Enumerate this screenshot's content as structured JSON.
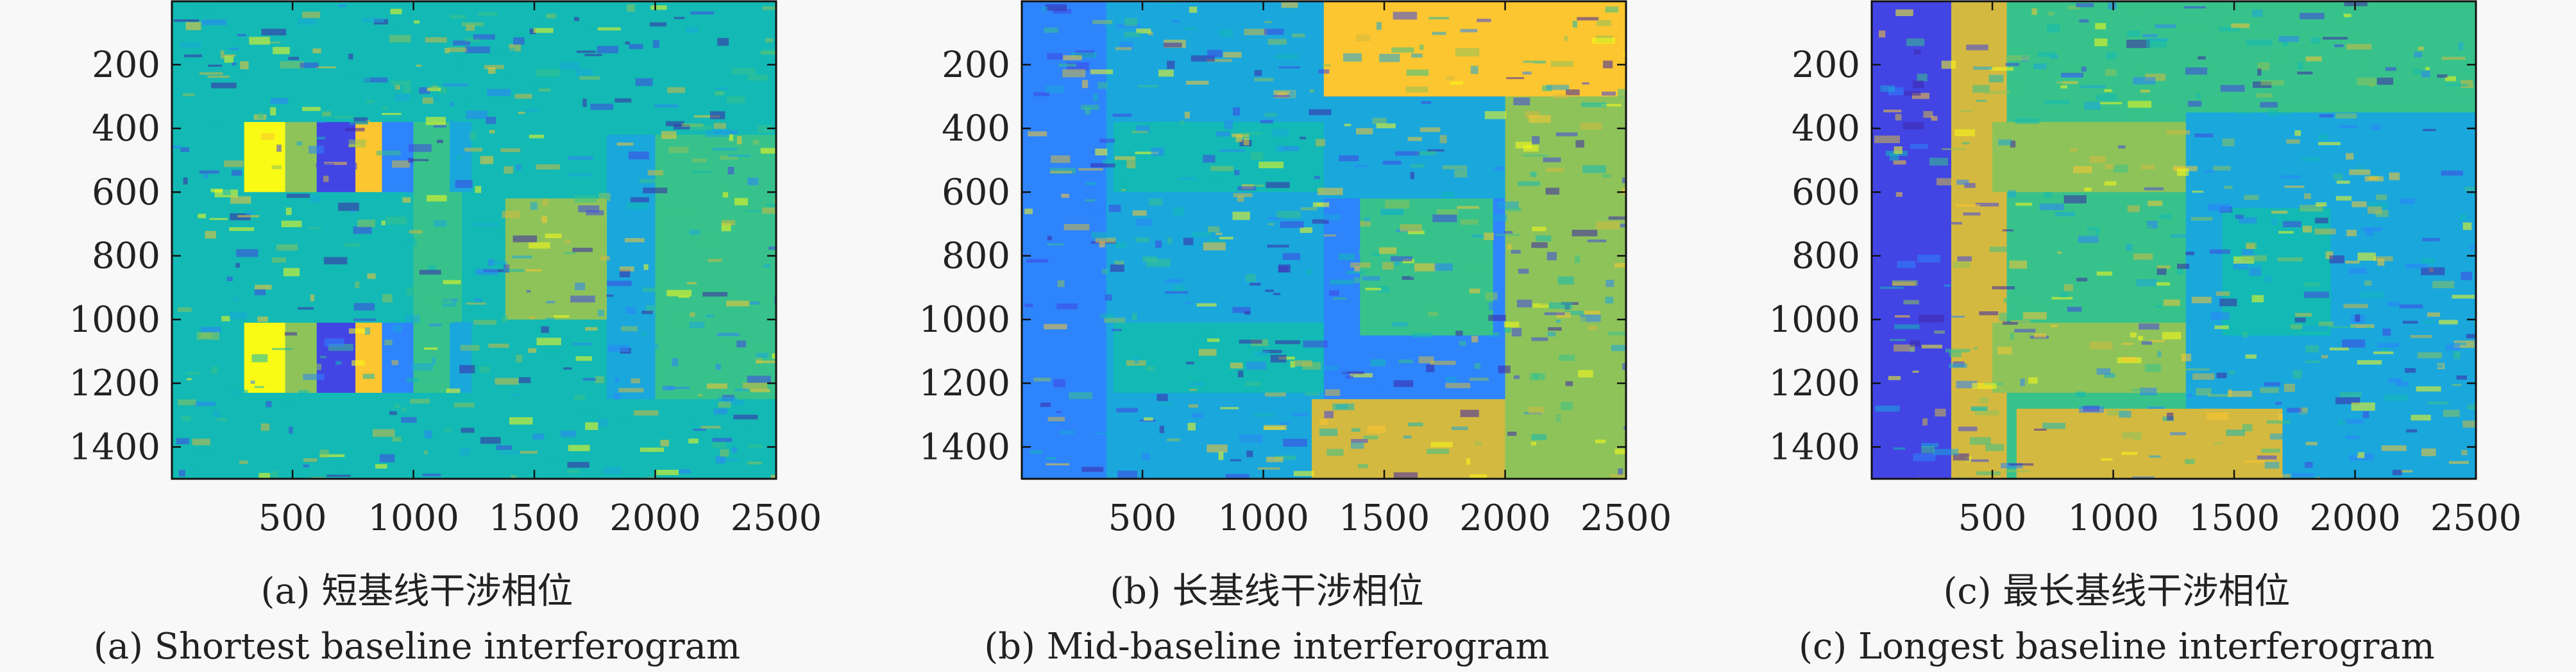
{
  "colormap": [
    "#3e26a8",
    "#4245e4",
    "#2e84fb",
    "#1aa7dc",
    "#13b9b4",
    "#38c28b",
    "#8ec35a",
    "#d4b940",
    "#fbc630",
    "#f9fb15"
  ],
  "chart_data": [
    {
      "type": "heatmap",
      "panel": "a",
      "caption_zh": "(a) 短基线干涉相位",
      "caption_en": "(a) Shortest baseline interferogram",
      "xlim": [
        1,
        2500
      ],
      "ylim": [
        1,
        1500
      ],
      "y_reversed": true,
      "xticks": [
        500,
        1000,
        1500,
        2000,
        2500
      ],
      "yticks": [
        200,
        400,
        600,
        800,
        1000,
        1200,
        1400
      ],
      "xlabel": "",
      "ylabel": "",
      "base_level": 0.42,
      "patches": [
        {
          "x": [
            300,
            470
          ],
          "y": [
            380,
            600
          ],
          "level": 0.97
        },
        {
          "x": [
            470,
            600
          ],
          "y": [
            380,
            600
          ],
          "level": 0.72
        },
        {
          "x": [
            600,
            760
          ],
          "y": [
            380,
            600
          ],
          "level": 0.12
        },
        {
          "x": [
            760,
            870
          ],
          "y": [
            380,
            600
          ],
          "level": 0.9
        },
        {
          "x": [
            870,
            1000
          ],
          "y": [
            380,
            600
          ],
          "level": 0.22
        },
        {
          "x": [
            1000,
            1150
          ],
          "y": [
            380,
            600
          ],
          "level": 0.6
        },
        {
          "x": [
            1150,
            1240
          ],
          "y": [
            380,
            600
          ],
          "level": 0.3
        },
        {
          "x": [
            300,
            470
          ],
          "y": [
            1010,
            1230
          ],
          "level": 0.97
        },
        {
          "x": [
            470,
            600
          ],
          "y": [
            1010,
            1230
          ],
          "level": 0.72
        },
        {
          "x": [
            600,
            760
          ],
          "y": [
            1010,
            1230
          ],
          "level": 0.12
        },
        {
          "x": [
            760,
            870
          ],
          "y": [
            1010,
            1230
          ],
          "level": 0.9
        },
        {
          "x": [
            870,
            1000
          ],
          "y": [
            1010,
            1230
          ],
          "level": 0.22
        },
        {
          "x": [
            1000,
            1150
          ],
          "y": [
            1010,
            1230
          ],
          "level": 0.6
        },
        {
          "x": [
            1150,
            1240
          ],
          "y": [
            1010,
            1230
          ],
          "level": 0.3
        },
        {
          "x": [
            1000,
            1200
          ],
          "y": [
            600,
            1010
          ],
          "level": 0.58
        },
        {
          "x": [
            1380,
            1800
          ],
          "y": [
            620,
            1000
          ],
          "level": 0.62
        },
        {
          "x": [
            1800,
            2000
          ],
          "y": [
            420,
            1250
          ],
          "level": 0.36
        },
        {
          "x": [
            2000,
            2500
          ],
          "y": [
            420,
            1250
          ],
          "level": 0.55
        }
      ]
    },
    {
      "type": "heatmap",
      "panel": "b",
      "caption_zh": "(b) 长基线干涉相位",
      "caption_en": "(b) Mid-baseline interferogram",
      "xlim": [
        1,
        2500
      ],
      "ylim": [
        1,
        1500
      ],
      "y_reversed": true,
      "xticks": [
        500,
        1000,
        1500,
        2000,
        2500
      ],
      "yticks": [
        200,
        400,
        600,
        800,
        1000,
        1200,
        1400
      ],
      "xlabel": "",
      "ylabel": "",
      "base_level": 0.2,
      "patches": [
        {
          "x": [
            1,
            350
          ],
          "y": [
            1,
            1500
          ],
          "level": 0.24
        },
        {
          "x": [
            350,
            1250
          ],
          "y": [
            1,
            1500
          ],
          "level": 0.3
        },
        {
          "x": [
            1250,
            2500
          ],
          "y": [
            1,
            300
          ],
          "level": 0.88
        },
        {
          "x": [
            2000,
            2500
          ],
          "y": [
            300,
            1500
          ],
          "level": 0.72
        },
        {
          "x": [
            1400,
            1950
          ],
          "y": [
            620,
            1050
          ],
          "level": 0.6
        },
        {
          "x": [
            1200,
            2000
          ],
          "y": [
            1250,
            1500
          ],
          "level": 0.82
        },
        {
          "x": [
            380,
            1250
          ],
          "y": [
            380,
            600
          ],
          "level": 0.45
        },
        {
          "x": [
            380,
            1250
          ],
          "y": [
            1010,
            1230
          ],
          "level": 0.45
        },
        {
          "x": [
            1250,
            2000
          ],
          "y": [
            300,
            620
          ],
          "level": 0.38
        }
      ]
    },
    {
      "type": "heatmap",
      "panel": "c",
      "caption_zh": "(c) 最长基线干涉相位",
      "caption_en": "(c) Longest baseline interferogram",
      "xlim": [
        1,
        2500
      ],
      "ylim": [
        1,
        1500
      ],
      "y_reversed": true,
      "xticks": [
        500,
        1000,
        1500,
        2000,
        2500
      ],
      "yticks": [
        200,
        400,
        600,
        800,
        1000,
        1200,
        1400
      ],
      "xlabel": "",
      "ylabel": "",
      "base_level": 0.32,
      "patches": [
        {
          "x": [
            1,
            330
          ],
          "y": [
            1,
            1500
          ],
          "level": 0.08
        },
        {
          "x": [
            330,
            560
          ],
          "y": [
            1,
            1500
          ],
          "level": 0.78
        },
        {
          "x": [
            560,
            1300
          ],
          "y": [
            1,
            1500
          ],
          "level": 0.55
        },
        {
          "x": [
            1300,
            2500
          ],
          "y": [
            1,
            350
          ],
          "level": 0.58
        },
        {
          "x": [
            1450,
            1900
          ],
          "y": [
            650,
            1050
          ],
          "level": 0.4
        },
        {
          "x": [
            1900,
            2500
          ],
          "y": [
            350,
            1500
          ],
          "level": 0.38
        },
        {
          "x": [
            500,
            1300
          ],
          "y": [
            380,
            600
          ],
          "level": 0.7
        },
        {
          "x": [
            500,
            1300
          ],
          "y": [
            1010,
            1230
          ],
          "level": 0.7
        },
        {
          "x": [
            600,
            1700
          ],
          "y": [
            1280,
            1500
          ],
          "level": 0.82
        }
      ]
    }
  ]
}
